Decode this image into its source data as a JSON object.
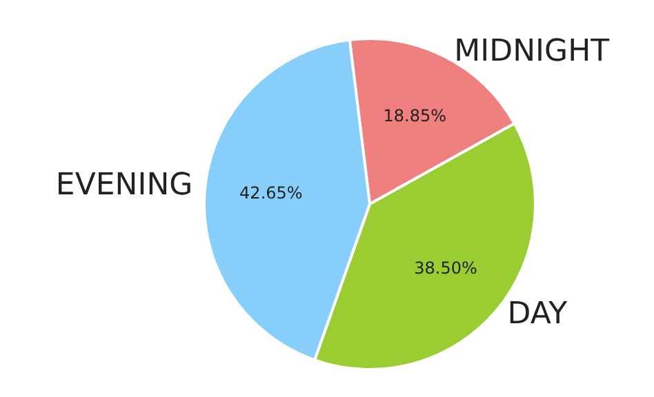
{
  "chart_data": {
    "type": "pie",
    "categories": [
      "MIDNIGHT",
      "DAY",
      "EVENING"
    ],
    "values": [
      18.85,
      38.5,
      42.65
    ],
    "colors": [
      "#f08080",
      "#9acd32",
      "#87cefa"
    ],
    "value_labels": [
      "18.85%",
      "38.50%",
      "42.65%"
    ],
    "legend": false
  }
}
